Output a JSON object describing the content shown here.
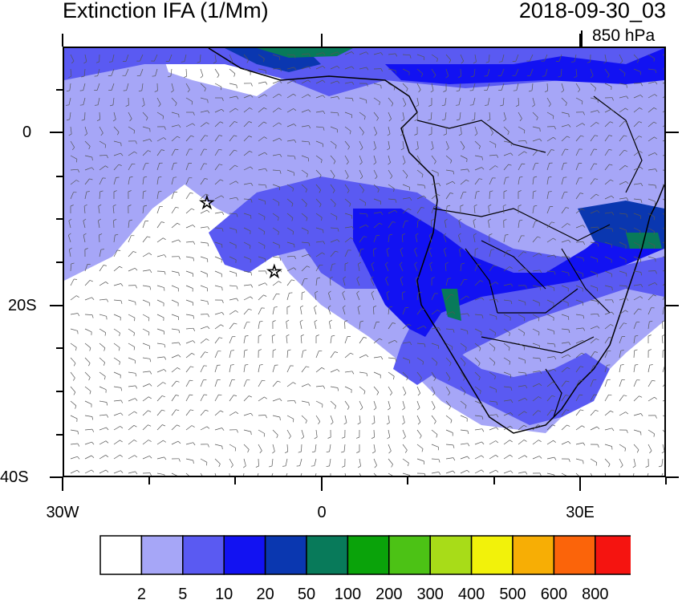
{
  "title": {
    "left": "Extinction IFA (1/Mm)",
    "right": "2018-09-30_03",
    "level": "850 hPa"
  },
  "axes": {
    "lat_ticks": [
      "0",
      "20S",
      "40S"
    ],
    "lon_ticks": [
      "30W",
      "0",
      "30E"
    ]
  },
  "colorbar": {
    "colors": [
      "#ffffff",
      "#a6a6f7",
      "#5a5af2",
      "#1212f2",
      "#0a37b0",
      "#087a5a",
      "#0aa30a",
      "#4cc215",
      "#a8dc18",
      "#f2f20a",
      "#f7ae05",
      "#fb640a",
      "#f51410"
    ],
    "labels": [
      "2",
      "5",
      "10",
      "20",
      "50",
      "100",
      "200",
      "300",
      "400",
      "500",
      "600",
      "800"
    ]
  },
  "markers": [
    "star-1",
    "star-2"
  ]
}
